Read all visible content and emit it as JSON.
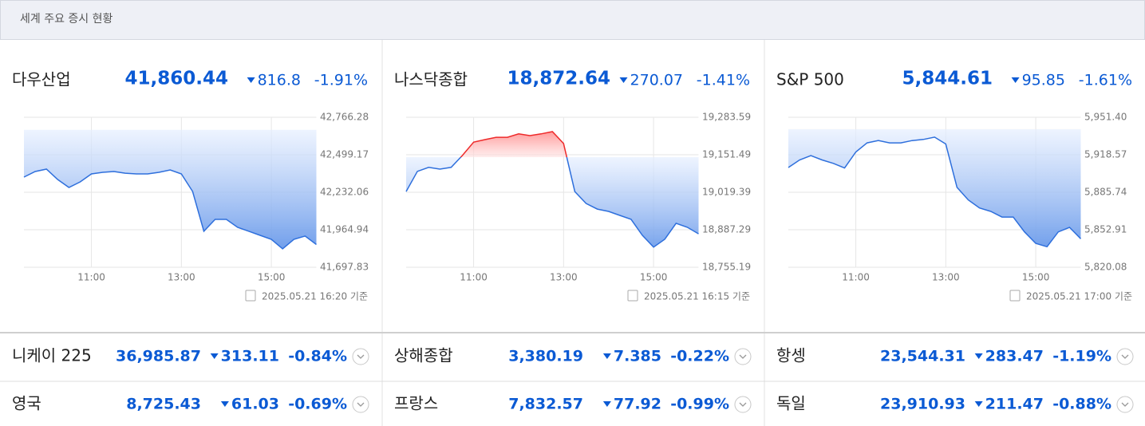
{
  "header": {
    "title": "세계 주요 증시 현황"
  },
  "chart_data": [
    {
      "type": "line",
      "title": "다우산업",
      "price": "41,860.44",
      "change": "816.8",
      "change_pct": "-1.91%",
      "timestamp": "2025.05.21 16:20 기준",
      "x": [
        9.5,
        9.75,
        10,
        10.25,
        10.5,
        10.75,
        11,
        11.25,
        11.5,
        11.75,
        12,
        12.25,
        12.5,
        12.75,
        13,
        13.25,
        13.5,
        13.75,
        14,
        14.25,
        14.5,
        14.75,
        15,
        15.25,
        15.5,
        15.75,
        16
      ],
      "values": [
        42340,
        42380,
        42397,
        42323,
        42266,
        42306,
        42363,
        42374,
        42380,
        42368,
        42363,
        42363,
        42374,
        42391,
        42363,
        42238,
        41954,
        42039,
        42039,
        41982,
        41954,
        41925,
        41897,
        41829,
        41897,
        41920,
        41860
      ],
      "prev_close": 42677,
      "xlim": [
        9.5,
        16
      ],
      "xticks": [
        {
          "value": 11,
          "label": "11:00"
        },
        {
          "value": 13,
          "label": "13:00"
        },
        {
          "value": 15,
          "label": "15:00"
        }
      ],
      "ylim": [
        41697.83,
        42766.28
      ],
      "yticks": [
        {
          "value": 41697.83,
          "label": "41,697.83"
        },
        {
          "value": 41964.94,
          "label": "41,964.94"
        },
        {
          "value": 42232.06,
          "label": "42,232.06"
        },
        {
          "value": 42499.17,
          "label": "42,499.17"
        },
        {
          "value": 42766.28,
          "label": "42,766.28"
        }
      ],
      "grid": true
    },
    {
      "type": "line",
      "title": "나스닥종합",
      "price": "18,872.64",
      "change": "270.07",
      "change_pct": "-1.41%",
      "timestamp": "2025.05.21 16:15 기준",
      "x": [
        9.5,
        9.75,
        10,
        10.25,
        10.5,
        10.75,
        11,
        11.25,
        11.5,
        11.75,
        12,
        12.25,
        12.5,
        12.75,
        13,
        13.25,
        13.5,
        13.75,
        14,
        14.25,
        14.5,
        14.75,
        15,
        15.25,
        15.5,
        15.75,
        16
      ],
      "values": [
        19022,
        19093,
        19107,
        19101,
        19107,
        19149,
        19196,
        19205,
        19213,
        19213,
        19225,
        19219,
        19225,
        19233,
        19191,
        19022,
        18980,
        18960,
        18952,
        18938,
        18924,
        18868,
        18826,
        18854,
        18910,
        18896,
        18873
      ],
      "prev_close": 19143,
      "xlim": [
        9.5,
        16
      ],
      "xticks": [
        {
          "value": 11,
          "label": "11:00"
        },
        {
          "value": 13,
          "label": "13:00"
        },
        {
          "value": 15,
          "label": "15:00"
        }
      ],
      "ylim": [
        18755.19,
        19283.59
      ],
      "yticks": [
        {
          "value": 18755.19,
          "label": "18,755.19"
        },
        {
          "value": 18887.29,
          "label": "18,887.29"
        },
        {
          "value": 19019.39,
          "label": "19,019.39"
        },
        {
          "value": 19151.49,
          "label": "19,151.49"
        },
        {
          "value": 19283.59,
          "label": "19,283.59"
        }
      ],
      "grid": true
    },
    {
      "type": "line",
      "title": "S&P 500",
      "price": "5,844.61",
      "change": "95.85",
      "change_pct": "-1.61%",
      "timestamp": "2025.05.21 17:00 기준",
      "x": [
        9.5,
        9.75,
        10,
        10.25,
        10.5,
        10.75,
        11,
        11.25,
        11.5,
        11.75,
        12,
        12.25,
        12.5,
        12.75,
        13,
        13.25,
        13.5,
        13.75,
        14,
        14.25,
        14.5,
        14.75,
        15,
        15.25,
        15.5,
        15.75,
        16
      ],
      "values": [
        5907.4,
        5914,
        5917.9,
        5914,
        5911,
        5907,
        5921,
        5929,
        5931,
        5929,
        5929,
        5931,
        5932,
        5934,
        5928,
        5890,
        5879,
        5872,
        5869,
        5864,
        5864,
        5851,
        5841,
        5838,
        5851,
        5855,
        5845
      ],
      "prev_close": 5941,
      "xlim": [
        9.5,
        16
      ],
      "xticks": [
        {
          "value": 11,
          "label": "11:00"
        },
        {
          "value": 13,
          "label": "13:00"
        },
        {
          "value": 15,
          "label": "15:00"
        }
      ],
      "ylim": [
        5820.08,
        5951.4
      ],
      "yticks": [
        {
          "value": 5820.08,
          "label": "5,820.08"
        },
        {
          "value": 5852.91,
          "label": "5,852.91"
        },
        {
          "value": 5885.74,
          "label": "5,885.74"
        },
        {
          "value": 5918.57,
          "label": "5,918.57"
        },
        {
          "value": 5951.4,
          "label": "5,951.40"
        }
      ],
      "grid": true
    }
  ],
  "rows": [
    [
      {
        "name": "니케이 225",
        "price": "36,985.87",
        "change": "313.11",
        "change_pct": "-0.84%"
      },
      {
        "name": "상해종합",
        "price": "3,380.19",
        "change": "7.385",
        "change_pct": "-0.22%"
      },
      {
        "name": "항셍",
        "price": "23,544.31",
        "change": "283.47",
        "change_pct": "-1.19%"
      }
    ],
    [
      {
        "name": "영국",
        "price": "8,725.43",
        "change": "61.03",
        "change_pct": "-0.69%"
      },
      {
        "name": "프랑스",
        "price": "7,832.57",
        "change": "77.92",
        "change_pct": "-0.99%"
      },
      {
        "name": "독일",
        "price": "23,910.93",
        "change": "211.47",
        "change_pct": "-0.88%"
      }
    ]
  ]
}
